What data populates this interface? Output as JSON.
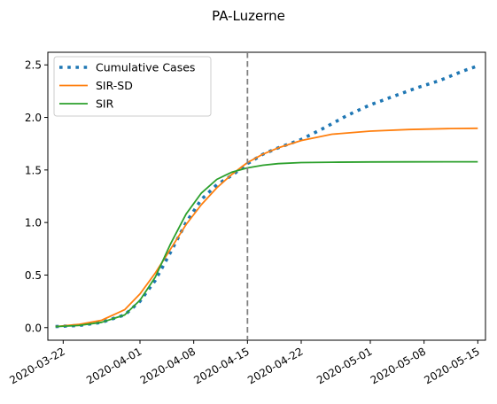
{
  "chart_data": {
    "type": "line",
    "title": "PA-Luzerne",
    "xlabel": "",
    "ylabel": "",
    "x_type": "date",
    "xlim": [
      "2020-03-20",
      "2020-05-16"
    ],
    "ylim": [
      -0.12,
      2.62
    ],
    "y_ticks": [
      0.0,
      0.5,
      1.0,
      1.5,
      2.0,
      2.5
    ],
    "y_tick_labels": [
      "0.0",
      "0.5",
      "1.0",
      "1.5",
      "2.0",
      "2.5"
    ],
    "x_ticks": [
      "2020-03-22",
      "2020-04-01",
      "2020-04-08",
      "2020-04-15",
      "2020-04-22",
      "2020-05-01",
      "2020-05-08",
      "2020-05-15"
    ],
    "vline": {
      "x": "2020-04-15",
      "style": "dashed",
      "color": "#808080"
    },
    "grid": false,
    "legend_position": "top-left",
    "series": [
      {
        "name": "Cumulative Cases",
        "style": "dotted",
        "color": "#1f77b4",
        "x": [
          "2020-03-21",
          "2020-03-24",
          "2020-03-27",
          "2020-03-30",
          "2020-04-01",
          "2020-04-03",
          "2020-04-05",
          "2020-04-07",
          "2020-04-09",
          "2020-04-11",
          "2020-04-13",
          "2020-04-15",
          "2020-04-17",
          "2020-04-19",
          "2020-04-22",
          "2020-04-25",
          "2020-04-28",
          "2020-05-01",
          "2020-05-04",
          "2020-05-07",
          "2020-05-10",
          "2020-05-13",
          "2020-05-15"
        ],
        "y": [
          0.01,
          0.02,
          0.05,
          0.12,
          0.25,
          0.45,
          0.72,
          1.0,
          1.22,
          1.36,
          1.45,
          1.56,
          1.65,
          1.71,
          1.79,
          1.9,
          2.02,
          2.12,
          2.2,
          2.28,
          2.35,
          2.44,
          2.49
        ]
      },
      {
        "name": "SIR-SD",
        "style": "solid",
        "color": "#ff7f0e",
        "x": [
          "2020-03-21",
          "2020-03-24",
          "2020-03-27",
          "2020-03-30",
          "2020-04-01",
          "2020-04-03",
          "2020-04-05",
          "2020-04-07",
          "2020-04-09",
          "2020-04-11",
          "2020-04-13",
          "2020-04-15",
          "2020-04-17",
          "2020-04-19",
          "2020-04-22",
          "2020-04-26",
          "2020-05-01",
          "2020-05-06",
          "2020-05-11",
          "2020-05-15"
        ],
        "y": [
          0.01,
          0.03,
          0.07,
          0.17,
          0.32,
          0.52,
          0.75,
          0.98,
          1.17,
          1.33,
          1.46,
          1.57,
          1.65,
          1.71,
          1.78,
          1.84,
          1.87,
          1.885,
          1.893,
          1.897
        ]
      },
      {
        "name": "SIR",
        "style": "solid",
        "color": "#2ca02c",
        "x": [
          "2020-03-21",
          "2020-03-24",
          "2020-03-27",
          "2020-03-30",
          "2020-04-01",
          "2020-04-03",
          "2020-04-05",
          "2020-04-07",
          "2020-04-09",
          "2020-04-11",
          "2020-04-13",
          "2020-04-15",
          "2020-04-17",
          "2020-04-19",
          "2020-04-22",
          "2020-04-26",
          "2020-05-01",
          "2020-05-06",
          "2020-05-11",
          "2020-05-15"
        ],
        "y": [
          0.01,
          0.02,
          0.05,
          0.12,
          0.26,
          0.48,
          0.8,
          1.08,
          1.28,
          1.41,
          1.48,
          1.52,
          1.545,
          1.56,
          1.57,
          1.574,
          1.576,
          1.577,
          1.578,
          1.578
        ]
      }
    ]
  }
}
